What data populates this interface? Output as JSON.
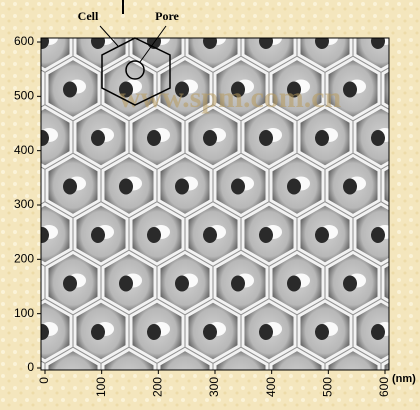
{
  "chart_data": {
    "type": "image",
    "annotations": [
      "Cell",
      "Pore"
    ],
    "watermark": "www.spm.com.cn",
    "x_unit": "(nm)",
    "xlim": [
      0,
      600
    ],
    "ylim": [
      0,
      600
    ],
    "xticks": [
      0,
      100,
      200,
      300,
      400,
      500,
      600
    ],
    "yticks": [
      0,
      100,
      200,
      300,
      400,
      500,
      600
    ]
  }
}
